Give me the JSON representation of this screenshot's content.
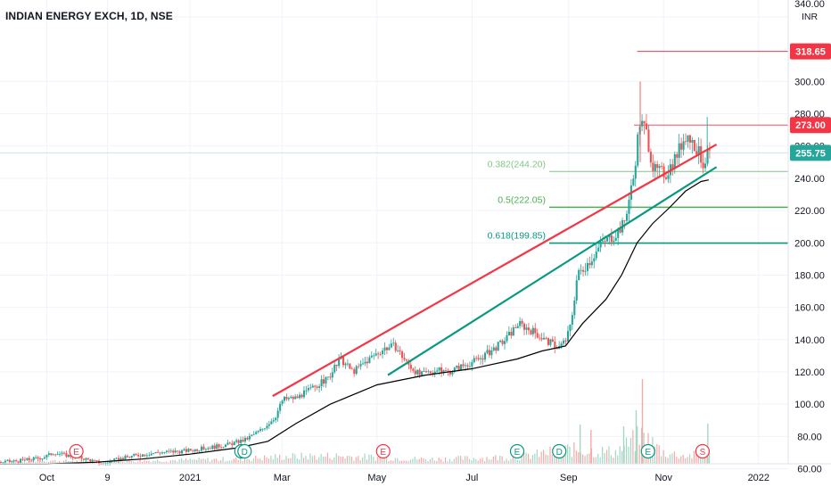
{
  "header": {
    "title": "INDIAN ENERGY EXCH, 1D, NSE"
  },
  "axis": {
    "currency": "INR",
    "price_ticks": [
      "60.00",
      "80.00",
      "100.00",
      "120.00",
      "140.00",
      "160.00",
      "180.00",
      "200.00",
      "220.00",
      "240.00",
      "260.00",
      "280.00",
      "300.00",
      "340.00"
    ],
    "time_labels": [
      "Oct",
      "9",
      "2021",
      "Mar",
      "May",
      "Jul",
      "Sep",
      "Nov",
      "2022"
    ]
  },
  "price_badges": [
    {
      "label": "318.65",
      "value": 318.65,
      "color": "#f23645"
    },
    {
      "label": "273.00",
      "value": 273.0,
      "color": "#f23645"
    },
    {
      "label": "255.75",
      "value": 255.75,
      "color": "#26a69a"
    }
  ],
  "fibonacci": [
    {
      "label": "0.382(244.20)",
      "value": 244.2,
      "color": "#81c784"
    },
    {
      "label": "0.5(222.05)",
      "value": 222.05,
      "color": "#4caf50"
    },
    {
      "label": "0.618(199.85)",
      "value": 199.85,
      "color": "#089981"
    }
  ],
  "event_markers": [
    {
      "letter": "E",
      "date": "2020-10-20",
      "color": "#f23645"
    },
    {
      "letter": "E",
      "date": "2021-02-03",
      "color": "#089981"
    },
    {
      "letter": "D",
      "date": "2021-02-05",
      "color": "#089981"
    },
    {
      "letter": "E",
      "date": "2021-05-05",
      "color": "#f23645"
    },
    {
      "letter": "E",
      "date": "2021-07-30",
      "color": "#089981"
    },
    {
      "letter": "D",
      "date": "2021-08-26",
      "color": "#089981"
    },
    {
      "letter": "E",
      "date": "2021-10-22",
      "color": "#089981"
    },
    {
      "letter": "S",
      "date": "2021-11-26",
      "color": "#f23645"
    }
  ],
  "colors": {
    "up": "#26a69a",
    "down": "#ef5350",
    "channel_upper": "#f23645",
    "channel_lower": "#089981",
    "moving_average": "#000000",
    "grid": "#f0f3fa",
    "axis_text": "#131722"
  },
  "chart_data": {
    "type": "candlestick",
    "title": "INDIAN ENERGY EXCH, 1D, NSE",
    "x_range": [
      "2020-09-01",
      "2022-01-20"
    ],
    "y_range": [
      52,
      343
    ],
    "y_unit": "INR",
    "grid": true,
    "price_series": [
      [
        "2020-09-01",
        64
      ],
      [
        "2020-09-14",
        65
      ],
      [
        "2020-09-28",
        67
      ],
      [
        "2020-10-05",
        70
      ],
      [
        "2020-10-15",
        68
      ],
      [
        "2020-10-26",
        66
      ],
      [
        "2020-11-05",
        63
      ],
      [
        "2020-11-12",
        65
      ],
      [
        "2020-11-25",
        68
      ],
      [
        "2020-12-10",
        70
      ],
      [
        "2020-12-28",
        71
      ],
      [
        "2021-01-12",
        73
      ],
      [
        "2021-01-25",
        75
      ],
      [
        "2021-02-05",
        78
      ],
      [
        "2021-02-15",
        84
      ],
      [
        "2021-02-24",
        92
      ],
      [
        "2021-03-01",
        103
      ],
      [
        "2021-03-10",
        104
      ],
      [
        "2021-03-20",
        110
      ],
      [
        "2021-03-30",
        116
      ],
      [
        "2021-04-07",
        128
      ],
      [
        "2021-04-15",
        120
      ],
      [
        "2021-04-28",
        130
      ],
      [
        "2021-05-06",
        135
      ],
      [
        "2021-05-12",
        136
      ],
      [
        "2021-05-20",
        125
      ],
      [
        "2021-05-28",
        118
      ],
      [
        "2021-06-07",
        121
      ],
      [
        "2021-06-15",
        120
      ],
      [
        "2021-06-25",
        124
      ],
      [
        "2021-07-05",
        128
      ],
      [
        "2021-07-14",
        134
      ],
      [
        "2021-07-22",
        140
      ],
      [
        "2021-07-30",
        150
      ],
      [
        "2021-08-09",
        145
      ],
      [
        "2021-08-16",
        140
      ],
      [
        "2021-08-25",
        135
      ],
      [
        "2021-08-30",
        140
      ],
      [
        "2021-09-02",
        150
      ],
      [
        "2021-09-06",
        180
      ],
      [
        "2021-09-15",
        190
      ],
      [
        "2021-09-22",
        200
      ],
      [
        "2021-09-30",
        205
      ],
      [
        "2021-10-06",
        212
      ],
      [
        "2021-10-12",
        240
      ],
      [
        "2021-10-16",
        275
      ],
      [
        "2021-10-20",
        270
      ],
      [
        "2021-10-25",
        245
      ],
      [
        "2021-11-02",
        243
      ],
      [
        "2021-11-09",
        255
      ],
      [
        "2021-11-15",
        268
      ],
      [
        "2021-11-22",
        258
      ],
      [
        "2021-11-26",
        249
      ],
      [
        "2021-11-30",
        256
      ]
    ],
    "moving_average": [
      [
        "2020-09-01",
        63
      ],
      [
        "2020-10-01",
        63
      ],
      [
        "2020-11-01",
        64
      ],
      [
        "2020-12-01",
        66
      ],
      [
        "2021-01-01",
        69
      ],
      [
        "2021-02-01",
        73
      ],
      [
        "2021-02-20",
        77
      ],
      [
        "2021-03-10",
        88
      ],
      [
        "2021-04-01",
        100
      ],
      [
        "2021-05-01",
        112
      ],
      [
        "2021-06-01",
        118
      ],
      [
        "2021-07-01",
        122
      ],
      [
        "2021-07-30",
        128
      ],
      [
        "2021-08-15",
        133
      ],
      [
        "2021-08-30",
        136
      ],
      [
        "2021-09-10",
        150
      ],
      [
        "2021-09-25",
        165
      ],
      [
        "2021-10-05",
        180
      ],
      [
        "2021-10-15",
        200
      ],
      [
        "2021-10-25",
        212
      ],
      [
        "2021-11-05",
        222
      ],
      [
        "2021-11-15",
        232
      ],
      [
        "2021-11-25",
        238
      ],
      [
        "2021-11-30",
        239
      ]
    ],
    "volume": [
      [
        "2020-09-01",
        3
      ],
      [
        "2020-10-01",
        4
      ],
      [
        "2020-11-01",
        3
      ],
      [
        "2020-12-01",
        4
      ],
      [
        "2021-01-01",
        5
      ],
      [
        "2021-02-01",
        6
      ],
      [
        "2021-03-01",
        9
      ],
      [
        "2021-04-01",
        10
      ],
      [
        "2021-05-01",
        8
      ],
      [
        "2021-06-01",
        6
      ],
      [
        "2021-07-01",
        7
      ],
      [
        "2021-08-01",
        9
      ],
      [
        "2021-09-01",
        18
      ],
      [
        "2021-09-15",
        16
      ],
      [
        "2021-10-01",
        15
      ],
      [
        "2021-10-18",
        35
      ],
      [
        "2021-11-01",
        14
      ],
      [
        "2021-11-15",
        10
      ],
      [
        "2021-11-30",
        12
      ]
    ],
    "trendlines": [
      {
        "name": "upper",
        "color": "#f23645",
        "from": [
          "2021-02-23",
          105
        ],
        "to": [
          "2021-12-05",
          261
        ]
      },
      {
        "name": "lower",
        "color": "#089981",
        "from": [
          "2021-05-08",
          118
        ],
        "to": [
          "2021-12-05",
          247
        ]
      }
    ],
    "horizontal_lines": [
      {
        "value": 318.65,
        "from": "2021-10-15",
        "color": "#f23645"
      },
      {
        "value": 273.0,
        "from": "2021-10-13",
        "color": "#f23645"
      }
    ],
    "last_price": 255.75
  }
}
